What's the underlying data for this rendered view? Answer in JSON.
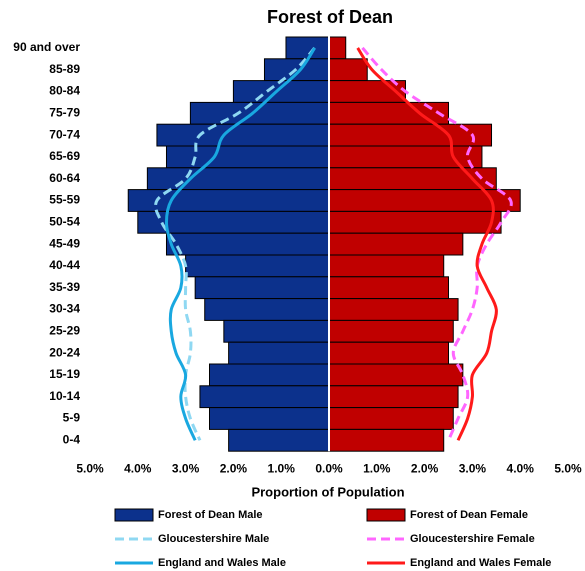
{
  "chart_data": {
    "type": "pyramid",
    "title": "Forest of Dean",
    "x_label": "Proportion of Population",
    "categories": [
      "90 and over",
      "85-89",
      "80-84",
      "75-79",
      "70-74",
      "65-69",
      "60-64",
      "55-59",
      "50-54",
      "45-49",
      "40-44",
      "35-39",
      "30-34",
      "25-29",
      "20-24",
      "15-19",
      "10-14",
      "5-9",
      "0-4"
    ],
    "xlim": [
      -5,
      5
    ],
    "xticks": [
      {
        "value": -5,
        "label": "5.0%"
      },
      {
        "value": -4,
        "label": "4.0%"
      },
      {
        "value": -3,
        "label": "3.0%"
      },
      {
        "value": -2,
        "label": "2.0%"
      },
      {
        "value": -1,
        "label": "1.0%"
      },
      {
        "value": 0,
        "label": "0.0%"
      },
      {
        "value": 1,
        "label": "1.0%"
      },
      {
        "value": 2,
        "label": "2.0%"
      },
      {
        "value": 3,
        "label": "3.0%"
      },
      {
        "value": 4,
        "label": "4.0%"
      },
      {
        "value": 5,
        "label": "5.0%"
      }
    ],
    "series": [
      {
        "name": "Forest of Dean Male",
        "kind": "bar",
        "side": "left",
        "color": "#0c318c",
        "values": [
          0.9,
          1.35,
          2.0,
          2.9,
          3.6,
          3.4,
          3.8,
          4.2,
          4.0,
          3.4,
          3.0,
          2.8,
          2.6,
          2.2,
          2.1,
          2.5,
          2.7,
          2.5,
          2.1
        ]
      },
      {
        "name": "Forest of Dean Female",
        "kind": "bar",
        "side": "right",
        "color": "#c00000",
        "values": [
          0.35,
          0.8,
          1.6,
          2.5,
          3.4,
          3.2,
          3.5,
          4.0,
          3.6,
          2.8,
          2.4,
          2.5,
          2.7,
          2.6,
          2.5,
          2.8,
          2.7,
          2.6,
          2.4
        ]
      },
      {
        "name": "Gloucestershire Male",
        "kind": "line",
        "dashed": true,
        "side": "left",
        "color": "#8fd8f2",
        "values": [
          0.3,
          0.7,
          1.3,
          1.9,
          2.7,
          2.8,
          3.0,
          3.6,
          3.5,
          3.2,
          3.0,
          3.0,
          3.0,
          2.9,
          2.9,
          3.0,
          3.0,
          2.9,
          2.7
        ]
      },
      {
        "name": "Gloucestershire Female",
        "kind": "line",
        "dashed": true,
        "side": "right",
        "color": "#ff66ff",
        "values": [
          0.7,
          1.1,
          1.6,
          2.3,
          3.0,
          2.9,
          3.2,
          3.8,
          3.6,
          3.3,
          3.1,
          3.1,
          3.0,
          2.8,
          2.6,
          2.8,
          2.9,
          2.7,
          2.5
        ]
      },
      {
        "name": "England and Wales Male",
        "kind": "line",
        "dashed": false,
        "side": "left",
        "color": "#19a8e0",
        "values": [
          0.3,
          0.6,
          1.1,
          1.6,
          2.2,
          2.4,
          2.9,
          3.3,
          3.4,
          3.3,
          3.1,
          3.1,
          3.3,
          3.3,
          3.2,
          3.0,
          3.1,
          3.0,
          2.8
        ]
      },
      {
        "name": "England and Wales Female",
        "kind": "line",
        "dashed": false,
        "side": "right",
        "color": "#ff1a1a",
        "values": [
          0.6,
          0.9,
          1.4,
          1.9,
          2.5,
          2.6,
          3.0,
          3.4,
          3.4,
          3.2,
          3.1,
          3.3,
          3.5,
          3.4,
          3.3,
          3.0,
          3.0,
          2.9,
          2.7
        ]
      }
    ]
  }
}
